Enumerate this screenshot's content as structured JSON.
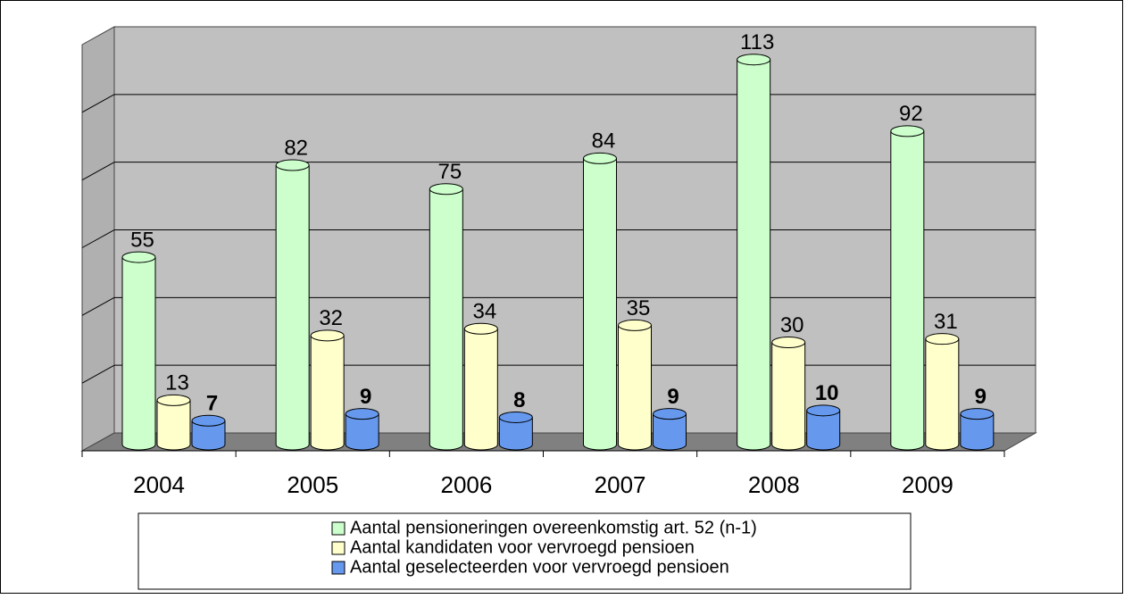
{
  "chart_data": {
    "type": "bar",
    "categories": [
      "2004",
      "2005",
      "2006",
      "2007",
      "2008",
      "2009"
    ],
    "series": [
      {
        "name": "Aantal pensioneringen overeenkomstig art. 52 (n-1)",
        "color": "#ccffcc",
        "values": [
          55,
          82,
          75,
          84,
          113,
          92
        ]
      },
      {
        "name": "Aantal kandidaten voor vervroegd pensioen",
        "color": "#ffffcc",
        "values": [
          13,
          32,
          34,
          35,
          30,
          31
        ]
      },
      {
        "name": "Aantal geselecteerden voor vervroegd pensioen",
        "color": "#6699ee",
        "values": [
          7,
          9,
          8,
          9,
          10,
          9
        ],
        "label_bold": true
      }
    ],
    "ylim": [
      0,
      120
    ],
    "yticks": [
      0,
      20,
      40,
      60,
      80,
      100,
      120
    ],
    "grid": true,
    "legend": "bottom"
  }
}
